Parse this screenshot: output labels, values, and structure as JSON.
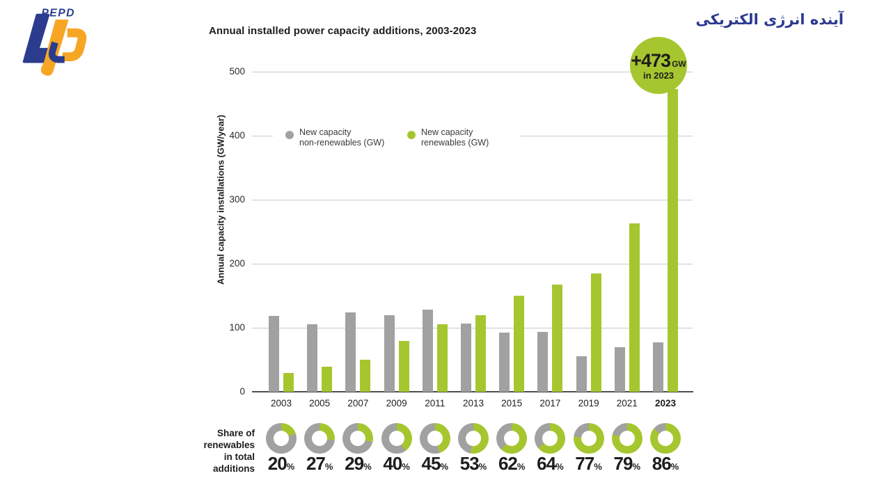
{
  "header": {
    "logo_text": "PEPD",
    "heading_rtl": "آینده انرژی الکتریکی"
  },
  "colors": {
    "accent_green": "#a6c62f",
    "bar_grey": "#a1a1a1",
    "logo_blue": "#2b3c8e",
    "logo_orange": "#f7a624",
    "heading_navy": "#2b3990",
    "gridline_grey": "#c9c9c9",
    "text_dark": "#1d1d1b"
  },
  "chart_data": {
    "type": "bar",
    "title": "Annual installed power capacity additions, 2003-2023",
    "ylabel": "Annual capacity installations (GW/year)",
    "xlabel": "",
    "ylim": [
      0,
      500
    ],
    "yticks": [
      0,
      100,
      200,
      300,
      400,
      500
    ],
    "grid": true,
    "legend_position": "inside-top-left",
    "categories": [
      "2003",
      "2005",
      "2007",
      "2009",
      "2011",
      "2013",
      "2015",
      "2017",
      "2019",
      "2021",
      "2023"
    ],
    "highlight_category": "2023",
    "series": [
      {
        "name": "New capacity\nnon-renewables (GW)",
        "color": "#a1a1a1",
        "values": [
          118,
          105,
          124,
          120,
          128,
          106,
          92,
          94,
          55,
          70,
          77
        ]
      },
      {
        "name": "New capacity\nrenewables (GW)",
        "color": "#a6c62f",
        "values": [
          29,
          39,
          50,
          79,
          105,
          120,
          150,
          167,
          185,
          263,
          473
        ]
      }
    ],
    "annotation": {
      "value": "+473",
      "unit": "GW",
      "sub": "in 2023"
    },
    "share_row": {
      "label": "Share of\nrenewables\nin total\nadditions",
      "percents": [
        20,
        27,
        29,
        40,
        45,
        53,
        62,
        64,
        77,
        79,
        86
      ],
      "unit": "%"
    }
  }
}
